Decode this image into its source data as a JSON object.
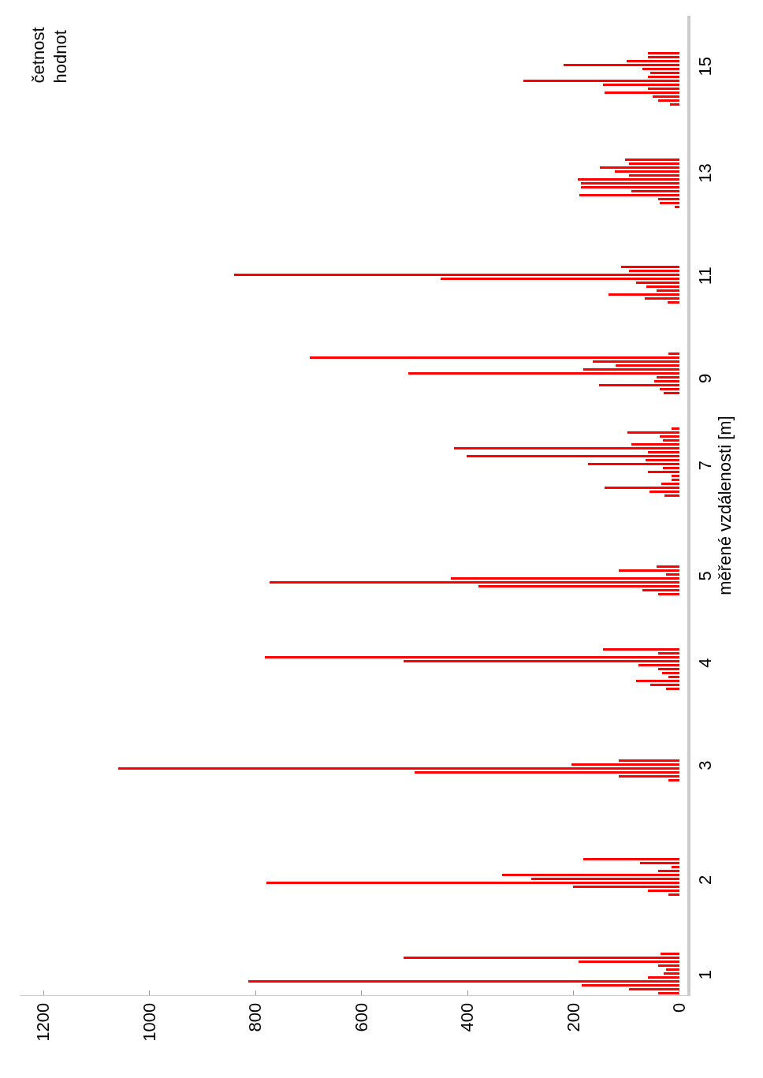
{
  "chart_data": {
    "type": "bar",
    "orientation": "horizontal",
    "annotations": [
      "četnost\nhodnot"
    ],
    "ylabel": "měřené vzdálenosti [m]",
    "color": "#ff0000",
    "categories": [
      null,
      null,
      null,
      null,
      null,
      null,
      null,
      null,
      null,
      null,
      null,
      null,
      null,
      "15",
      null,
      null,
      null,
      null,
      null,
      null,
      null,
      null,
      null,
      null,
      null,
      null,
      null,
      null,
      null,
      null,
      null,
      null,
      null,
      null,
      null,
      null,
      null,
      null,
      null,
      null,
      "13",
      null,
      null,
      null,
      null,
      null,
      null,
      null,
      null,
      null,
      null,
      null,
      null,
      null,
      null,
      null,
      null,
      null,
      null,
      null,
      null,
      null,
      null,
      null,
      null,
      null,
      "11",
      null,
      null,
      null,
      null,
      null,
      null,
      null,
      null,
      null,
      null,
      null,
      null,
      null,
      null,
      null,
      null,
      null,
      null,
      null,
      null,
      null,
      null,
      null,
      null,
      null,
      "9",
      null,
      null,
      null,
      null,
      null,
      null,
      null,
      null,
      null,
      null,
      null,
      null,
      null,
      null,
      null,
      null,
      null,
      null,
      null,
      null,
      null,
      "7",
      null,
      null,
      null,
      null,
      null,
      null,
      null,
      null,
      null,
      null,
      null,
      null,
      null,
      null,
      null,
      null,
      null,
      null,
      null,
      null,
      null,
      null,
      null,
      null,
      null,
      null,
      null,
      "5",
      null,
      null,
      null,
      null,
      null,
      null,
      null,
      null,
      null,
      null,
      null,
      null,
      null,
      null,
      null,
      null,
      null,
      null,
      null,
      null,
      null,
      "4",
      null,
      null,
      null,
      null,
      null,
      null,
      null,
      null,
      null,
      null,
      null,
      null,
      null,
      null,
      null,
      null,
      null,
      null,
      null,
      null,
      null,
      null,
      null,
      null,
      null,
      "3",
      null,
      null,
      null,
      null,
      null,
      null,
      null,
      null,
      null,
      null,
      null,
      null,
      null,
      null,
      null,
      null,
      null,
      null,
      null,
      null,
      null,
      null,
      null,
      null,
      null,
      null,
      null,
      null,
      "2",
      null,
      null,
      null,
      null,
      null,
      null,
      null,
      null,
      null,
      null,
      null,
      null,
      null,
      null,
      null,
      null,
      null,
      null,
      null,
      null,
      null,
      null,
      null,
      "1",
      null,
      null,
      null,
      null
    ],
    "values": [
      null,
      null,
      null,
      null,
      null,
      null,
      null,
      null,
      null,
      59,
      60,
      100,
      218,
      70,
      55,
      60,
      294,
      144,
      60,
      141,
      50,
      40,
      18,
      null,
      null,
      null,
      null,
      null,
      null,
      null,
      null,
      null,
      null,
      null,
      null,
      null,
      102,
      95,
      150,
      122,
      95,
      192,
      186,
      186,
      90,
      189,
      40,
      37,
      9,
      null,
      null,
      null,
      null,
      null,
      null,
      null,
      null,
      null,
      null,
      null,
      null,
      null,
      null,
      110,
      95,
      841,
      451,
      82,
      62,
      43,
      134,
      65,
      22,
      null,
      null,
      null,
      null,
      null,
      null,
      null,
      null,
      null,
      null,
      null,
      null,
      21,
      698,
      164,
      120,
      181,
      511,
      43,
      47,
      152,
      37,
      30,
      null,
      null,
      null,
      null,
      null,
      null,
      null,
      null,
      15,
      98,
      37,
      31,
      90,
      425,
      60,
      402,
      64,
      172,
      31,
      59,
      15,
      15,
      34,
      141,
      56,
      28,
      null,
      null,
      null,
      null,
      null,
      null,
      null,
      null,
      null,
      null,
      null,
      null,
      null,
      null,
      null,
      null,
      null,
      43,
      114,
      25,
      431,
      774,
      379,
      70,
      40,
      null,
      null,
      null,
      null,
      null,
      null,
      null,
      null,
      null,
      null,
      null,
      null,
      null,
      144,
      40,
      783,
      520,
      77,
      40,
      33,
      20,
      82,
      55,
      25,
      null,
      null,
      null,
      null,
      null,
      null,
      null,
      null,
      null,
      null,
      null,
      null,
      null,
      null,
      null,
      null,
      null,
      114,
      203,
      1059,
      500,
      115,
      20,
      null,
      null,
      null,
      null,
      null,
      null,
      null,
      null,
      null,
      null,
      null,
      null,
      null,
      null,
      null,
      null,
      null,
      null,
      null,
      181,
      75,
      15,
      40,
      335,
      280,
      780,
      200,
      60,
      20,
      null,
      null,
      null,
      null,
      null,
      null,
      null,
      null,
      null,
      null,
      null,
      null,
      null,
      null,
      35,
      520,
      190,
      40,
      25,
      30,
      60,
      814,
      185,
      95,
      40
    ],
    "xlim": [
      1245,
      -15
    ],
    "xticks": [
      0,
      200,
      400,
      600,
      800,
      1000,
      1200
    ]
  }
}
